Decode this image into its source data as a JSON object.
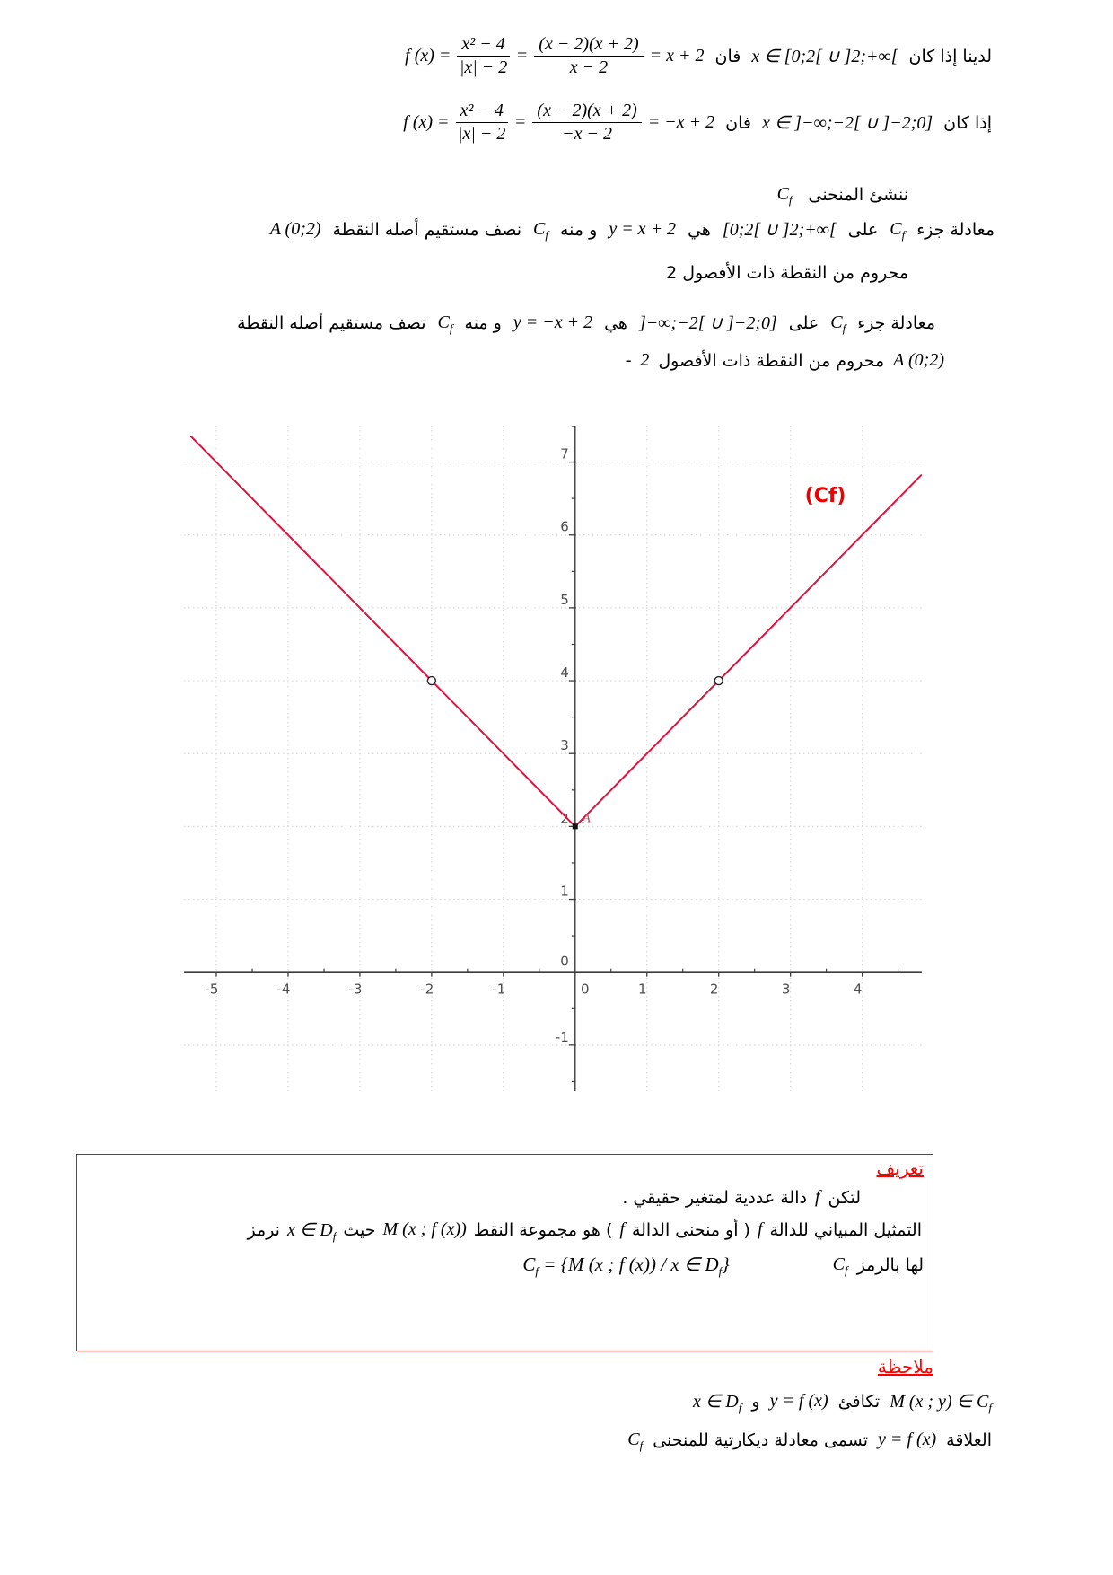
{
  "sym": {
    "C": "C",
    "D": "D",
    "f": "f"
  },
  "colors": {
    "heading_red": "#ff0000",
    "box_border_red": "#ff0000",
    "curve_red": "#dc143c"
  },
  "top": {
    "line1": {
      "intro": "لدينا إذا كان",
      "condition": "x ∈ [0;2[ ∪ ]2;+∞[",
      "then_word": "فان",
      "lhs": "f (x) =",
      "frac1": {
        "num": "x² − 4",
        "den": "|x| − 2"
      },
      "eq": "=",
      "frac2": {
        "num": "(x − 2)(x + 2)",
        "den": "x − 2"
      },
      "rhs": "= x + 2"
    },
    "line2": {
      "intro": "إذا كان",
      "condition": "x ∈ ]−∞;−2[ ∪ ]−2;0]",
      "then_word": "فان",
      "lhs": "f (x) =",
      "frac1": {
        "num": "x² − 4",
        "den": "|x| − 2"
      },
      "eq": "=",
      "frac2": {
        "num": "(x − 2)(x + 2)",
        "den": "−x − 2"
      },
      "rhs": "= −x + 2"
    }
  },
  "construct": {
    "text": "ننشئ المنحنى"
  },
  "para1": {
    "t1": "معادلة جزء",
    "t2": "على",
    "interval": "[0;2[ ∪ ]2;+∞[",
    "t3": "هي",
    "eq": "y = x + 2",
    "t4": "و منه",
    "t5": "نصف مستقيم أصله النقطة",
    "point": "A (0;2)",
    "line2": "محروم من النقطة ذات الأفصول 2"
  },
  "para2": {
    "t1": "معادلة جزء",
    "t2": "على",
    "interval": "]−∞;−2[ ∪ ]−2;0]",
    "t3": "هي",
    "eq": "y = −x + 2",
    "t4": "و منه",
    "t5": "نصف مستقيم أصله النقطة",
    "line2_point": "A (0;2)",
    "line2_text": "محروم من النقطة ذات الأفصول",
    "line2_num": "2",
    "line2_minus": "-"
  },
  "defbox": {
    "title": "تعريف",
    "line1_a": "لتكن",
    "line1_f": "f",
    "line1_b": "دالة عددية لمتغير حقيقي .",
    "line2_a": "التمثيل المبياني للدالة",
    "line2_f1": "f",
    "line2_b": "( أو منحنى الدالة",
    "line2_f2": "f",
    "line2_c": ") هو مجموعة النقط",
    "line2_m": "M (x ; f (x))",
    "line2_d": "حيث",
    "line2_xin": "x ∈",
    "line2_e": "نرمز",
    "line3_a": "لها بالرمز",
    "line3_eq_mid": "= {M (x ; f (x)) / x ∈",
    "line3_eq_end": "}"
  },
  "note": {
    "title": "ملاحظة",
    "l1_m1": "M (x ; y) ∈",
    "l1_t1": "تكافئ",
    "l1_m2": "y = f (x)",
    "l1_t2": "و",
    "l1_m3": "x ∈",
    "l2_t1": "العلاقة",
    "l2_m1": "y = f (x)",
    "l2_t2": "تسمى معادلة ديكارتية للمنحنى"
  },
  "chart_data": {
    "type": "line",
    "title": "",
    "xlabel": "",
    "ylabel": "",
    "curve_name": "Cf",
    "piecewise": [
      {
        "domain": "[0;2[ ∪ ]2;+∞[",
        "equation": "y = x + 2"
      },
      {
        "domain": "]-∞;-2[ ∪ ]-2;0]",
        "equation": "y = -x + 2"
      }
    ],
    "series": [
      {
        "name": "left-branch",
        "points": [
          [
            -5.35,
            7.35
          ],
          [
            0,
            2
          ]
        ]
      },
      {
        "name": "right-branch",
        "points": [
          [
            0,
            2
          ],
          [
            4.82,
            6.82
          ]
        ]
      }
    ],
    "open_points": [
      [
        -2,
        4
      ],
      [
        2,
        4
      ]
    ],
    "vertex": {
      "xy": [
        0,
        2
      ],
      "label": "A"
    },
    "curve_label": {
      "text": "(Cf)",
      "xy": [
        3.2,
        6.45
      ]
    },
    "xticks": [
      -5,
      -4,
      -3,
      -2,
      -1,
      0,
      1,
      2,
      3,
      4
    ],
    "yticks": [
      -1,
      0,
      1,
      2,
      3,
      4,
      5,
      6,
      7
    ],
    "xlim": [
      -5.45,
      4.83
    ],
    "ylim": [
      -1.63,
      7.5
    ],
    "grid": true,
    "legend": false,
    "colors": {
      "curve": "#dc143c",
      "curve_label": "#ee0000",
      "point_label": "#e23a5a",
      "axis": "#3c3c3c",
      "grid": "#d8d8d8",
      "tick_label": "#4d4d4d",
      "point_stroke": "#222222",
      "vertex_fill": "#141414"
    }
  }
}
